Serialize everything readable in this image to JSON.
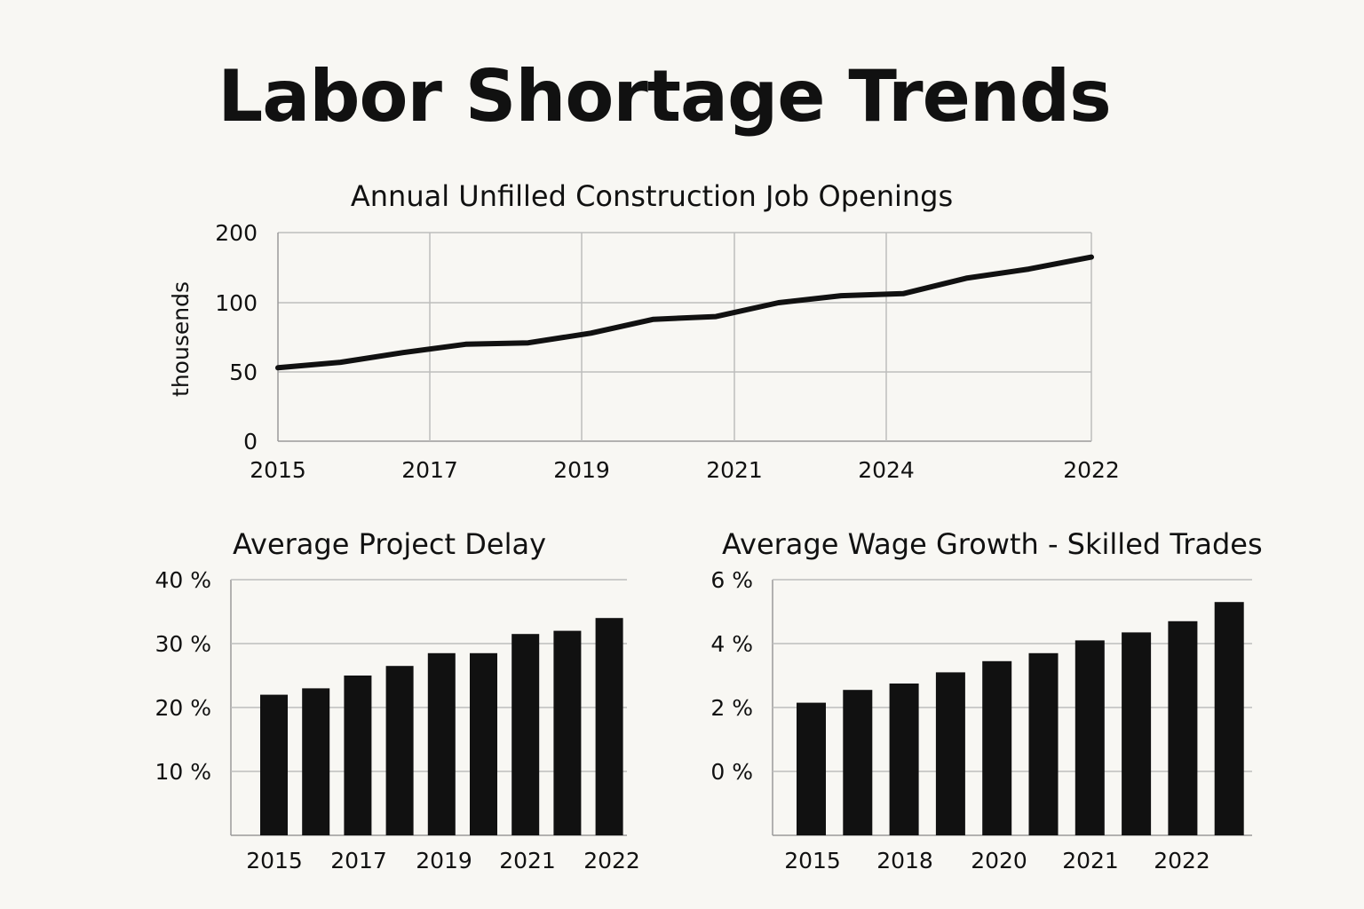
{
  "page_title": "Labor Shortage Trends",
  "colors": {
    "background": "#f8f7f3",
    "ink": "#111111",
    "grid": "#bdbdbd"
  },
  "chart_data": [
    {
      "type": "line",
      "title": "Annual Unfilled Construction Job Openings",
      "ylabel": "thousends",
      "y_tick_labels": [
        "0",
        "50",
        "100",
        "200"
      ],
      "x_tick_labels": [
        "2015",
        "2017",
        "2019",
        "2021",
        "2024",
        "2022"
      ],
      "grid": true,
      "series": [
        {
          "values": [
            53,
            57,
            64,
            70,
            71,
            78,
            88,
            90,
            100,
            110,
            113,
            135,
            148,
            165
          ]
        }
      ]
    },
    {
      "type": "bar",
      "title": "Average Project Delay",
      "y_tick_labels": [
        "10 %",
        "20 %",
        "30 %",
        "40 %"
      ],
      "x_tick_labels": [
        "2015",
        "2017",
        "2019",
        "2021",
        "2022"
      ],
      "ylim": [
        0,
        40
      ],
      "grid": true,
      "values": [
        22,
        23,
        25,
        26.5,
        28.5,
        28.5,
        31.5,
        32,
        34
      ]
    },
    {
      "type": "bar",
      "title": "Average Wage Growth - Skilled Trades",
      "y_tick_labels": [
        "0 %",
        "2 %",
        "4 %",
        "6 %"
      ],
      "x_tick_labels": [
        "2015",
        "2018",
        "2020",
        "2021",
        "2022"
      ],
      "ylim": [
        -2,
        6
      ],
      "grid": true,
      "values": [
        2.15,
        2.55,
        2.75,
        3.1,
        3.45,
        3.7,
        4.1,
        4.35,
        4.7,
        5.3
      ]
    }
  ]
}
